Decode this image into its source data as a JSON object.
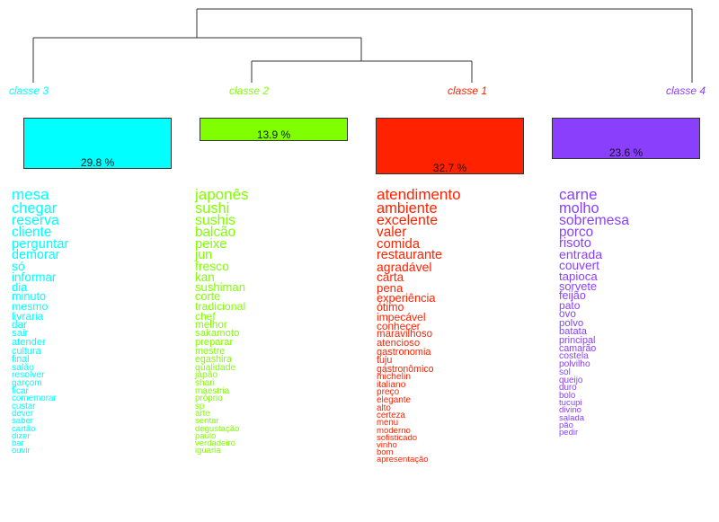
{
  "classes": [
    {
      "label": "classe  3",
      "percent": "29.8 %",
      "share": 29.8,
      "color": "#00FFFF",
      "words": [
        "mesa",
        "chegar",
        "reserva",
        "cliente",
        "perguntar",
        "demorar",
        "só",
        "informar",
        "dia",
        "minuto",
        "mesmo",
        "livraria",
        "dar",
        "sair",
        "atender",
        "cultura",
        "final",
        "salão",
        "resolver",
        "garçom",
        "ficar",
        "comemorar",
        "custar",
        "dever",
        "saber",
        "cartão",
        "dizer",
        "bar",
        "ouvir"
      ]
    },
    {
      "label": "classe  2",
      "percent": "13.9 %",
      "share": 13.9,
      "color": "#80FF00",
      "words": [
        "japonês",
        "sushi",
        "sushis",
        "balcão",
        "peixe",
        "jun",
        "fresco",
        "kan",
        "sushiman",
        "corte",
        "tradicional",
        "chef",
        "melhor",
        "sakamoto",
        "preparar",
        "mestre",
        "egashira",
        "qualidade",
        "japão",
        "shari",
        "maestria",
        "próprio",
        "sp",
        "arte",
        "sentar",
        "degustação",
        "paulo",
        "verdadeiro",
        "iguaria"
      ]
    },
    {
      "label": "classe  1",
      "percent": "32.7 %",
      "share": 32.7,
      "color": "#FF2200",
      "words": [
        "atendimento",
        "ambiente",
        "excelente",
        "valer",
        "comida",
        "restaurante",
        "agradável",
        "carta",
        "pena",
        "experiência",
        "ótimo",
        "impecável",
        "conhecer",
        "maravilhoso",
        "atencioso",
        "gastronomia",
        "tuju",
        "gastronômico",
        "michelin",
        "italiano",
        "preço",
        "elegante",
        "alto",
        "certeza",
        "menu",
        "moderno",
        "sofisticado",
        "vinho",
        "bom",
        "apresentação"
      ]
    },
    {
      "label": "classe  4",
      "percent": "23.6 %",
      "share": 23.6,
      "color": "#8A3FFC",
      "words": [
        "carne",
        "molho",
        "sobremesa",
        "porco",
        "risoto",
        "entrada",
        "couvert",
        "tapioca",
        "sorvete",
        "feijão",
        "pato",
        "ovo",
        "polvo",
        "batata",
        "principal",
        "camarão",
        "costela",
        "polvilho",
        "sol",
        "queijo",
        "duro",
        "bolo",
        "tucupi",
        "divino",
        "salada",
        "pão",
        "pedir"
      ]
    }
  ]
}
